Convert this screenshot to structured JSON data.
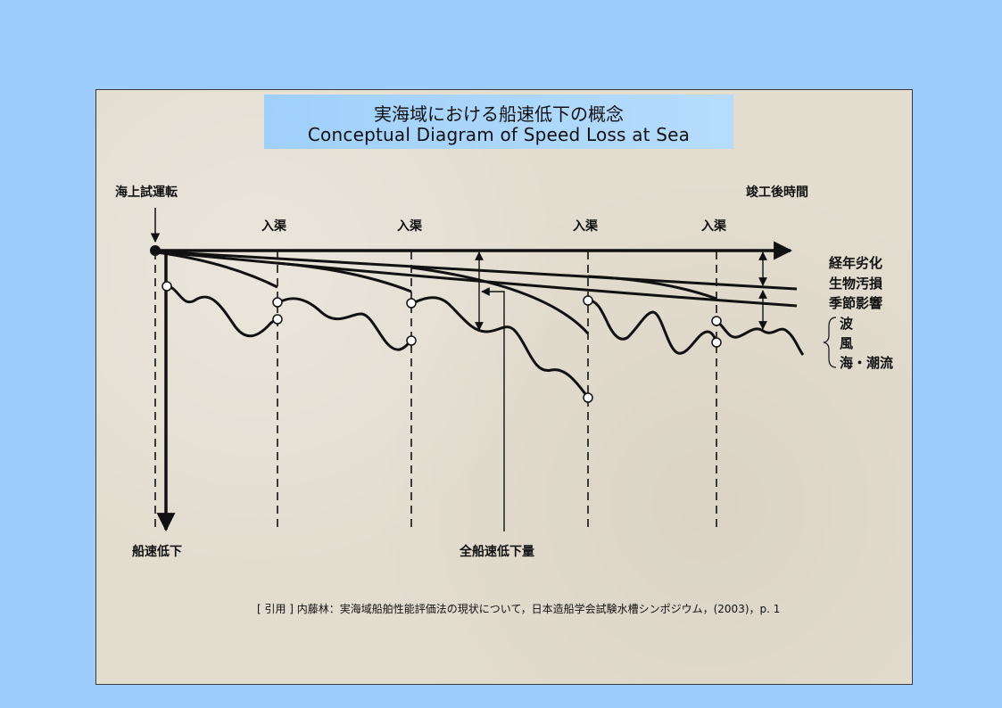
{
  "title": {
    "ja": "実海域における船速低下の概念",
    "en": "Conceptual Diagram of Speed Loss at Sea"
  },
  "labels": {
    "sea_trial": "海上試運転",
    "time_after_completion": "竣工後時間",
    "docking": [
      "入渠",
      "入渠",
      "入渠",
      "入渠"
    ],
    "speed_loss": "船速低下",
    "total_speed_loss": "全船速低下量"
  },
  "factors": {
    "aging": "経年劣化",
    "fouling": "生物汚損",
    "seasonal": "季節影響",
    "waves": "波",
    "wind": "風",
    "current": "海・潮流"
  },
  "citation": "[ 引用 ] 内藤林：実海域船舶性能評価法の現状について，日本造船学会試験水槽シンポジウム，(2003)，p. 1",
  "colors": {
    "background": "#9ccdfa",
    "panel": "#e3ddd0",
    "title_box": "#a8d4fb",
    "ink": "#111111"
  }
}
